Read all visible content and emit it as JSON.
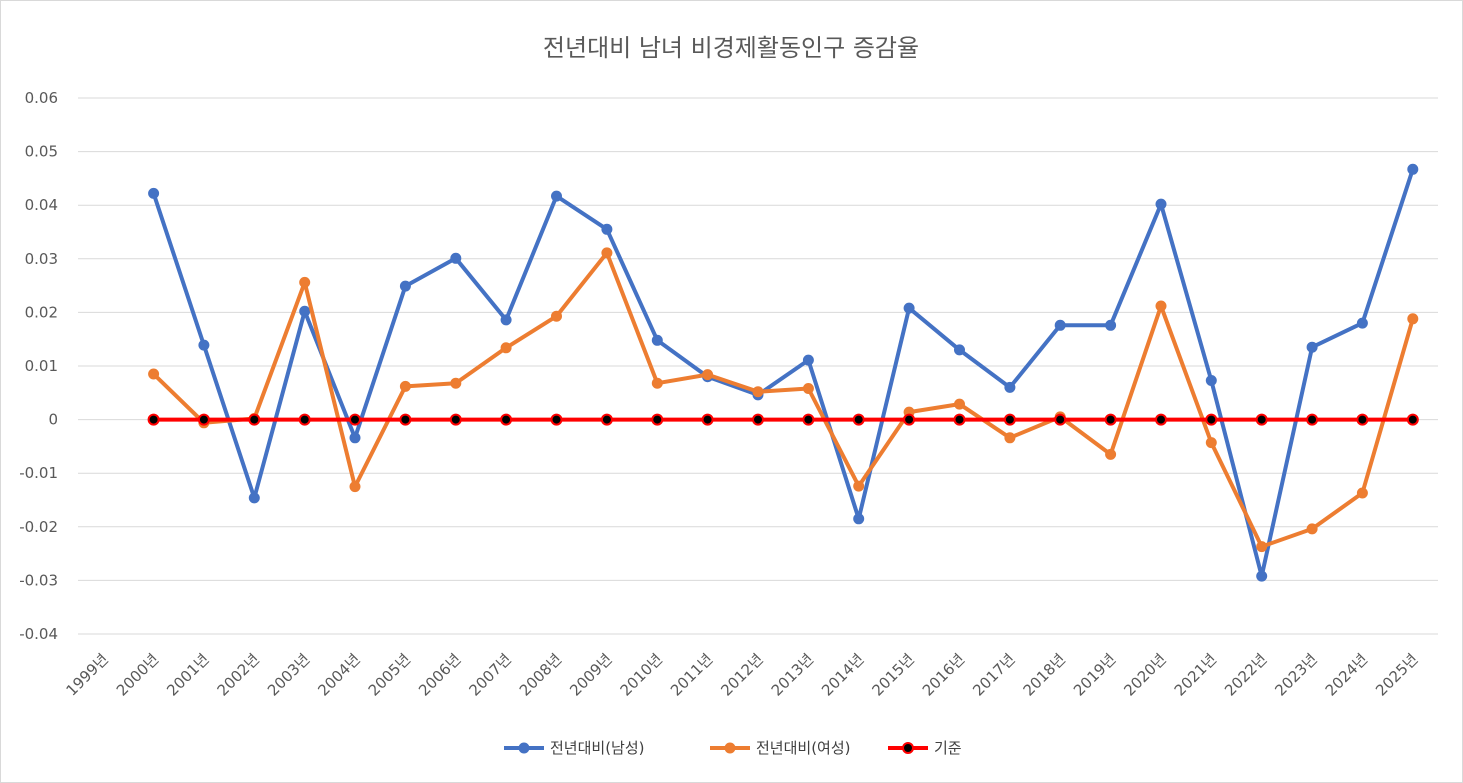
{
  "chart_data": {
    "type": "line",
    "title": "전년대비 남녀 비경제활동인구 증감율",
    "xlabel": "",
    "ylabel": "",
    "categories": [
      "1999년",
      "2000년",
      "2001년",
      "2002년",
      "2003년",
      "2004년",
      "2005년",
      "2006년",
      "2007년",
      "2008년",
      "2009년",
      "2010년",
      "2011년",
      "2012년",
      "2013년",
      "2014년",
      "2015년",
      "2016년",
      "2017년",
      "2018년",
      "2019년",
      "2020년",
      "2021년",
      "2022년",
      "2023년",
      "2024년",
      "2025년"
    ],
    "yticks": [
      "0.06",
      "0.05",
      "0.04",
      "0.03",
      "0.02",
      "0.01",
      "0",
      "-0.01",
      "-0.02",
      "-0.03",
      "-0.04"
    ],
    "ylim": [
      -0.04,
      0.06
    ],
    "grid": true,
    "legend_position": "bottom",
    "series": [
      {
        "name": "전년대비(남성)",
        "color": "#4472c4",
        "values": [
          null,
          0.0422,
          0.0139,
          -0.0146,
          0.0202,
          -0.0034,
          0.0249,
          0.0301,
          0.0186,
          0.0417,
          0.0355,
          0.0148,
          0.008,
          0.0046,
          0.0111,
          -0.0185,
          0.0208,
          0.013,
          0.006,
          0.0176,
          0.0176,
          0.0402,
          0.0073,
          -0.0292,
          0.0135,
          0.018,
          0.0467
        ]
      },
      {
        "name": "전년대비(여성)",
        "color": "#ed7d31",
        "values": [
          null,
          0.0085,
          -0.0006,
          0.0002,
          0.0256,
          -0.0125,
          0.0062,
          0.0068,
          0.0134,
          0.0193,
          0.0311,
          0.0068,
          0.0084,
          0.0052,
          0.0058,
          -0.0124,
          0.0014,
          0.0029,
          -0.0034,
          0.0005,
          -0.0065,
          0.0212,
          -0.0043,
          -0.0237,
          -0.0204,
          -0.0137,
          0.0188
        ]
      },
      {
        "name": "기준",
        "color": "#ff0000",
        "marker_color": "#000000",
        "values": [
          null,
          0,
          0,
          0,
          0,
          0,
          0,
          0,
          0,
          0,
          0,
          0,
          0,
          0,
          0,
          0,
          0,
          0,
          0,
          0,
          0,
          0,
          0,
          0,
          0,
          0,
          0
        ]
      }
    ]
  }
}
